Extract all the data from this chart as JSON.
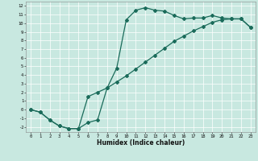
{
  "xlabel": "Humidex (Indice chaleur)",
  "bg_color": "#c8e8e0",
  "grid_color": "#ffffff",
  "line_color": "#1a6b5a",
  "xlim": [
    -0.5,
    23.5
  ],
  "ylim": [
    -2.6,
    12.5
  ],
  "xticks": [
    0,
    1,
    2,
    3,
    4,
    5,
    6,
    7,
    8,
    9,
    10,
    11,
    12,
    13,
    14,
    15,
    16,
    17,
    18,
    19,
    20,
    21,
    22,
    23
  ],
  "yticks": [
    -2,
    -1,
    0,
    1,
    2,
    3,
    4,
    5,
    6,
    7,
    8,
    9,
    10,
    11,
    12
  ],
  "line1_x": [
    0,
    1,
    2,
    3,
    4,
    5,
    6,
    7,
    8,
    9,
    10,
    11,
    12,
    13,
    14,
    15,
    16,
    17,
    18,
    19,
    20,
    21,
    22,
    23
  ],
  "line1_y": [
    0.0,
    -0.3,
    -1.2,
    -1.9,
    -2.2,
    -2.2,
    -1.5,
    -1.2,
    2.5,
    4.8,
    10.4,
    11.5,
    11.8,
    11.5,
    11.4,
    10.9,
    10.5,
    10.6,
    10.6,
    10.9,
    10.6,
    10.5,
    10.5,
    9.5
  ],
  "line2_x": [
    0,
    1,
    2,
    3,
    4,
    5,
    6,
    7,
    8,
    9,
    10,
    11,
    12,
    13,
    14,
    15,
    16,
    17,
    18,
    19,
    20,
    21,
    22,
    23
  ],
  "line2_y": [
    0.0,
    -0.3,
    -1.2,
    -1.9,
    -2.2,
    -2.2,
    1.5,
    2.0,
    2.5,
    3.2,
    3.9,
    4.7,
    5.5,
    6.3,
    7.1,
    7.9,
    8.5,
    9.1,
    9.6,
    10.1,
    10.4,
    10.5,
    10.5,
    9.5
  ],
  "marker": "D",
  "markersize": 2,
  "linewidth": 0.9
}
